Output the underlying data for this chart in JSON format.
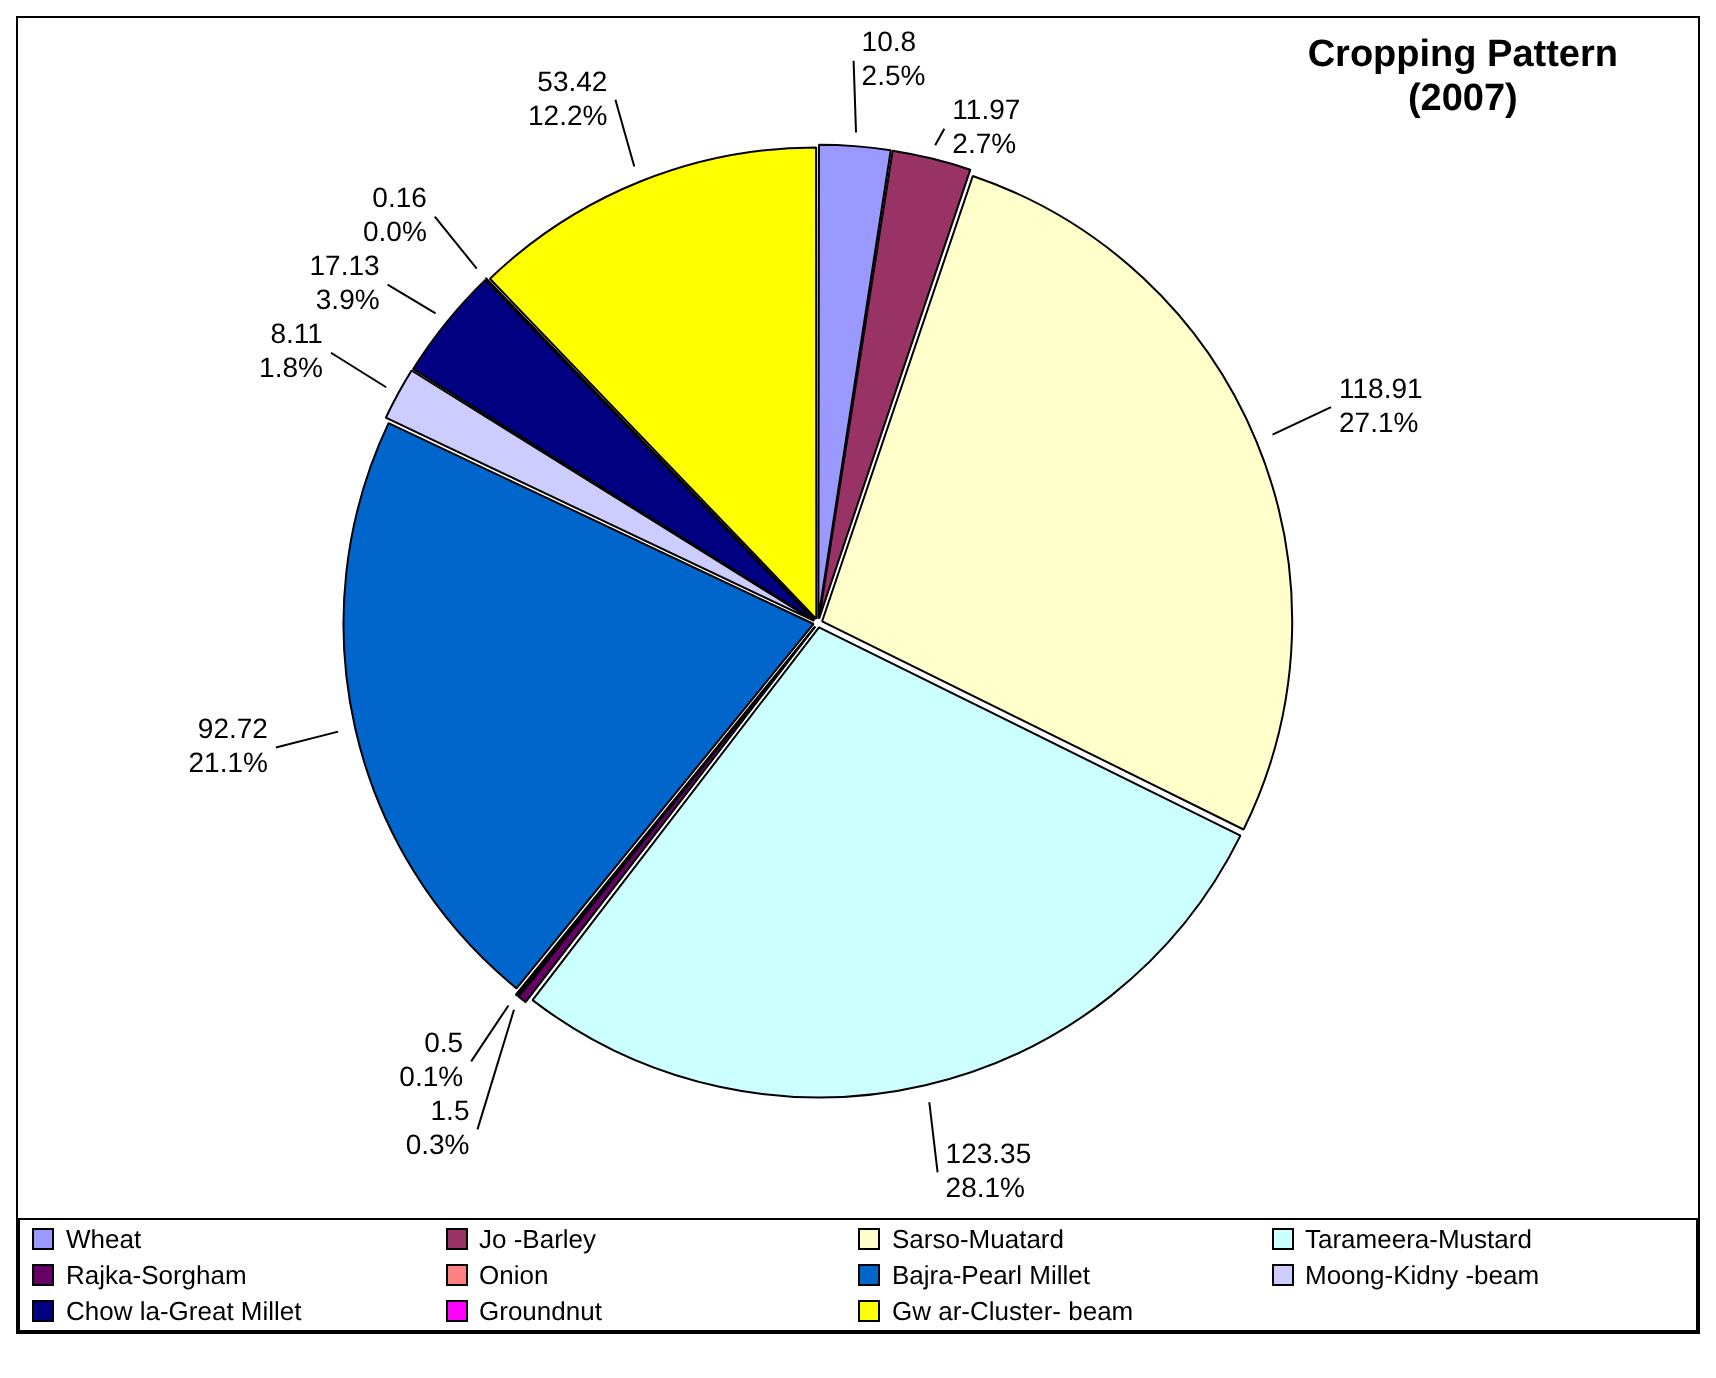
{
  "chart_data": {
    "type": "pie",
    "title": "Cropping Pattern\n(2007)",
    "categories": [
      "Wheat",
      "Jo -Barley",
      "Sarso-Muatard",
      "Tarameera-Mustard",
      "Rajka-Sorgham",
      "Onion",
      "Bajra-Pearl Millet",
      "Moong-Kidny -beam",
      "Chow la-Great Millet",
      "Groundnut",
      "Gw ar-Cluster- beam"
    ],
    "values": [
      10.8,
      11.97,
      118.91,
      123.35,
      1.5,
      0.5,
      92.72,
      8.11,
      17.13,
      0.16,
      53.42
    ],
    "colors": [
      "#9999ff",
      "#993366",
      "#ffffcc",
      "#ccffff",
      "#660066",
      "#ff8080",
      "#0066cc",
      "#ccccff",
      "#000080",
      "#ff00ff",
      "#ffff00"
    ],
    "value_labels": [
      "10.8\n2.5%",
      "11.97\n2.7%",
      "118.91\n27.1%",
      "123.35\n28.1%",
      "1.5\n0.3%",
      "0.5\n0.1%",
      "92.72\n21.1%",
      "8.11\n1.8%",
      "17.13\n3.9%",
      "0.16\n0.0%",
      "53.42\n12.2%"
    ],
    "legend": "bottom"
  }
}
